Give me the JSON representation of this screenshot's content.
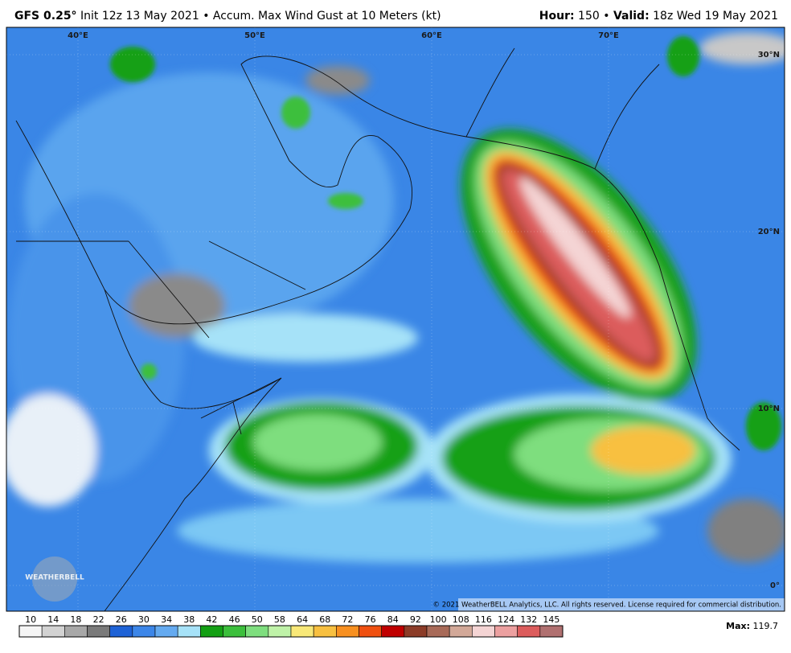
{
  "header": {
    "model": "GFS 0.25°",
    "title": "Init 12z 13 May 2021 • Accum. Max Wind Gust at 10 Meters (kt)",
    "hour_label": "Hour:",
    "hour": "150 •",
    "valid_label": "Valid:",
    "valid": "18z Wed 19 May 2021"
  },
  "map": {
    "lon_labels": [
      "40°E",
      "50°E",
      "60°E",
      "70°E"
    ],
    "lat_labels": [
      "30°N",
      "20°N",
      "10°N",
      "0°"
    ],
    "logo": "WEATHERBELL",
    "copyright": "© 2021 WeatherBELL Analytics, LLC. All rights reserved. License required for commercial distribution."
  },
  "colorbar": {
    "ticks": [
      10,
      14,
      18,
      22,
      26,
      30,
      34,
      38,
      42,
      46,
      50,
      58,
      64,
      68,
      72,
      76,
      84,
      92,
      100,
      108,
      116,
      124,
      132,
      145
    ],
    "colors": [
      "#f5f5f5",
      "#d2d2d2",
      "#a8a8a8",
      "#7a7a7a",
      "#1e62d6",
      "#3c86e8",
      "#64aaf0",
      "#a6e2f8",
      "#14a014",
      "#3cbf3c",
      "#7ede7e",
      "#bff2a8",
      "#f8e878",
      "#f8c040",
      "#f89020",
      "#f05010",
      "#c00000",
      "#8c3c28",
      "#a86a58",
      "#d2a898",
      "#f4d4d4",
      "#eca0a0",
      "#dc5c5c",
      "#b07070"
    ],
    "max_label": "Max:",
    "max": 119.7
  }
}
